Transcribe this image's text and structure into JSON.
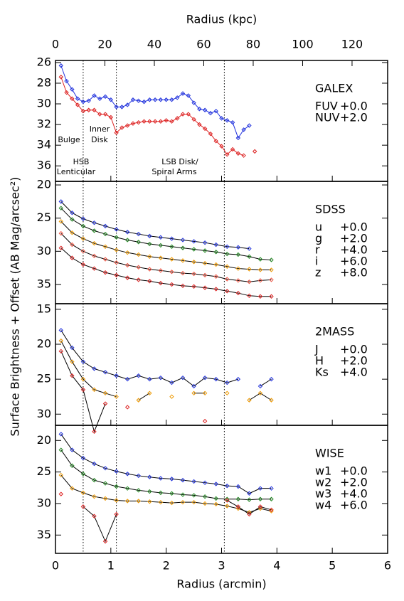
{
  "chart_data": [
    {
      "type": "line",
      "title": "GALEX",
      "ylabel": "Surface Brightness + Offset (AB Mag/arcsec²)",
      "x2label": "Radius (kpc)",
      "x2lim": [
        0,
        134.4
      ],
      "x2ticks": [
        0,
        20,
        40,
        60,
        80,
        100,
        120
      ],
      "xlim": [
        0,
        6
      ],
      "xticks": [
        0,
        1,
        2,
        3,
        4,
        5,
        6
      ],
      "ylim": [
        25.8,
        37.5
      ],
      "yticks": [
        26,
        28,
        30,
        32,
        34,
        36
      ],
      "y_inverted": true,
      "vlines": [
        0.5,
        1.1,
        3.05
      ],
      "annotations": [
        "Bulge",
        "HSB",
        "Lenticular",
        "Inner",
        "Disk",
        "LSB Disk/",
        "Spiral Arms"
      ],
      "x": [
        0.1,
        0.2,
        0.3,
        0.4,
        0.5,
        0.6,
        0.7,
        0.8,
        0.9,
        1.0,
        1.1,
        1.2,
        1.3,
        1.4,
        1.5,
        1.6,
        1.7,
        1.8,
        1.9,
        2.0,
        2.1,
        2.2,
        2.3,
        2.4,
        2.5,
        2.6,
        2.7,
        2.8,
        2.9,
        3.0,
        3.1,
        3.2,
        3.3,
        3.4,
        3.5,
        3.6
      ],
      "series": [
        {
          "name": "FUV",
          "offset": "+0.0",
          "color": "#2233dd",
          "values": [
            26.3,
            27.8,
            28.6,
            29.5,
            29.8,
            29.7,
            29.2,
            29.5,
            29.3,
            29.6,
            30.3,
            30.3,
            30.1,
            29.6,
            29.7,
            29.8,
            29.6,
            29.6,
            29.6,
            29.6,
            29.6,
            29.4,
            29.0,
            29.2,
            29.9,
            30.5,
            30.6,
            30.9,
            30.7,
            31.4,
            31.6,
            31.8,
            33.3,
            32.5,
            32.1,
            null
          ]
        },
        {
          "name": "NUV",
          "offset": "+2.0",
          "color": "#dd2222",
          "values": [
            27.4,
            28.9,
            29.5,
            30.1,
            30.7,
            30.6,
            30.6,
            31.0,
            31.0,
            31.3,
            32.8,
            32.3,
            32.1,
            31.9,
            31.8,
            31.7,
            31.7,
            31.7,
            31.7,
            31.6,
            31.7,
            31.4,
            31.0,
            31.0,
            31.5,
            32.0,
            32.4,
            32.9,
            33.6,
            34.1,
            34.9,
            34.4,
            34.8,
            35.0,
            null,
            34.6
          ]
        }
      ]
    },
    {
      "type": "line",
      "title": "SDSS",
      "line_color": "#000000",
      "xlim": [
        0,
        6
      ],
      "xticks": [
        0,
        1,
        2,
        3,
        4,
        5,
        6
      ],
      "ylim": [
        19.46,
        37.9
      ],
      "yticks": [
        20,
        25,
        30,
        35
      ],
      "y_inverted": true,
      "x": [
        0.1,
        0.3,
        0.5,
        0.7,
        0.9,
        1.1,
        1.3,
        1.5,
        1.7,
        1.9,
        2.1,
        2.3,
        2.5,
        2.7,
        2.9,
        3.1,
        3.3,
        3.5,
        3.7,
        3.9
      ],
      "series": [
        {
          "name": "u",
          "offset": "+0.0",
          "color": "#2233dd",
          "values": [
            22.5,
            24.2,
            25.1,
            25.7,
            26.2,
            26.7,
            27.1,
            27.4,
            27.7,
            27.9,
            28.1,
            28.3,
            28.5,
            28.7,
            29.0,
            29.3,
            29.4,
            29.6,
            null,
            null
          ]
        },
        {
          "name": "g",
          "offset": "+2.0",
          "color": "#228822",
          "values": [
            23.5,
            25.2,
            26.2,
            26.9,
            27.4,
            27.9,
            28.3,
            28.6,
            28.9,
            29.1,
            29.3,
            29.5,
            29.7,
            29.9,
            30.1,
            30.4,
            30.5,
            30.8,
            31.2,
            31.3
          ]
        },
        {
          "name": "r",
          "offset": "+4.0",
          "color": "#ee9900",
          "values": [
            25.5,
            27.2,
            28.1,
            28.8,
            29.3,
            29.8,
            30.2,
            30.5,
            30.8,
            31.0,
            31.2,
            31.4,
            31.6,
            31.8,
            32.0,
            32.3,
            32.6,
            32.7,
            32.8,
            32.8
          ]
        },
        {
          "name": "i",
          "offset": "+6.0",
          "color": "#ee5544",
          "values": [
            27.3,
            29.0,
            30.0,
            30.7,
            31.2,
            31.7,
            32.1,
            32.4,
            32.7,
            32.9,
            33.1,
            33.3,
            33.4,
            33.6,
            33.8,
            34.2,
            34.4,
            34.6,
            34.4,
            34.3
          ]
        },
        {
          "name": "z",
          "offset": "+8.0",
          "color": "#dd2222",
          "values": [
            29.5,
            31.0,
            32.0,
            32.6,
            33.2,
            33.6,
            34.0,
            34.3,
            34.5,
            34.8,
            35.0,
            35.2,
            35.3,
            35.5,
            35.7,
            36.0,
            36.3,
            36.7,
            36.8,
            36.8
          ]
        }
      ]
    },
    {
      "type": "line",
      "title": "2MASS",
      "line_color": "#000000",
      "xlim": [
        0,
        6
      ],
      "xticks": [
        0,
        1,
        2,
        3,
        4,
        5,
        6
      ],
      "ylim": [
        14.2,
        31.6
      ],
      "yticks": [
        15,
        20,
        25,
        30
      ],
      "y_inverted": true,
      "x": [
        0.1,
        0.3,
        0.5,
        0.7,
        0.9,
        1.1,
        1.3,
        1.5,
        1.7,
        1.9,
        2.1,
        2.3,
        2.5,
        2.7,
        2.9,
        3.1,
        3.3,
        3.5,
        3.7,
        3.9
      ],
      "series": [
        {
          "name": "J",
          "offset": "+0.0",
          "color": "#2233dd",
          "values": [
            18.0,
            20.5,
            22.5,
            23.5,
            24.0,
            24.5,
            25.0,
            24.5,
            25.0,
            24.8,
            25.5,
            24.8,
            26.0,
            24.8,
            25.0,
            25.5,
            25.0,
            null,
            26.0,
            25.0
          ]
        },
        {
          "name": "H",
          "offset": "+2.0",
          "color": "#ee9900",
          "values": [
            19.5,
            22.5,
            25.0,
            26.5,
            27.0,
            27.5,
            null,
            28.0,
            27.0,
            null,
            27.5,
            null,
            27.0,
            27.0,
            null,
            27.0,
            null,
            28.0,
            27.0,
            28.0
          ]
        },
        {
          "name": "Ks",
          "offset": "+4.0",
          "color": "#dd2222",
          "values": [
            21.0,
            24.5,
            26.5,
            32.5,
            28.5,
            null,
            29.0,
            null,
            null,
            null,
            null,
            null,
            null,
            31.0,
            null,
            null,
            null,
            null,
            null,
            null
          ]
        }
      ]
    },
    {
      "type": "line",
      "title": "WISE",
      "line_color": "#000000",
      "xlabel": "Radius (arcmin)",
      "xlim": [
        0,
        6
      ],
      "xticks": [
        0,
        1,
        2,
        3,
        4,
        5,
        6
      ],
      "ylim": [
        17.6,
        37.9
      ],
      "yticks": [
        20,
        25,
        30,
        35
      ],
      "y_inverted": true,
      "x": [
        0.1,
        0.3,
        0.5,
        0.7,
        0.9,
        1.1,
        1.3,
        1.5,
        1.7,
        1.9,
        2.1,
        2.3,
        2.5,
        2.7,
        2.9,
        3.1,
        3.3,
        3.5,
        3.7,
        3.9
      ],
      "series": [
        {
          "name": "w1",
          "offset": "+0.0",
          "color": "#2233dd",
          "values": [
            19.0,
            21.5,
            22.8,
            23.7,
            24.4,
            24.9,
            25.3,
            25.6,
            25.8,
            26.0,
            26.1,
            26.3,
            26.5,
            26.7,
            26.9,
            27.2,
            27.3,
            28.4,
            27.6,
            27.6
          ]
        },
        {
          "name": "w2",
          "offset": "+2.0",
          "color": "#228822",
          "values": [
            21.5,
            24.0,
            25.3,
            26.3,
            26.8,
            27.3,
            27.6,
            27.9,
            28.1,
            28.3,
            28.4,
            28.6,
            28.7,
            28.9,
            29.2,
            29.3,
            29.3,
            29.4,
            29.3,
            29.3
          ]
        },
        {
          "name": "w3",
          "offset": "+4.0",
          "color": "#ee9900",
          "values": [
            25.5,
            27.6,
            28.3,
            28.9,
            29.2,
            29.5,
            29.6,
            29.6,
            29.7,
            29.8,
            29.9,
            29.8,
            29.8,
            30.0,
            30.1,
            30.4,
            30.8,
            31.4,
            30.8,
            31.2
          ]
        },
        {
          "name": "w4",
          "offset": "+6.0",
          "color": "#dd2222",
          "values": [
            28.5,
            null,
            30.5,
            32.0,
            36.0,
            31.7,
            null,
            null,
            null,
            null,
            null,
            null,
            null,
            null,
            null,
            29.5,
            30.5,
            31.7,
            30.5,
            31.0
          ]
        }
      ]
    }
  ]
}
